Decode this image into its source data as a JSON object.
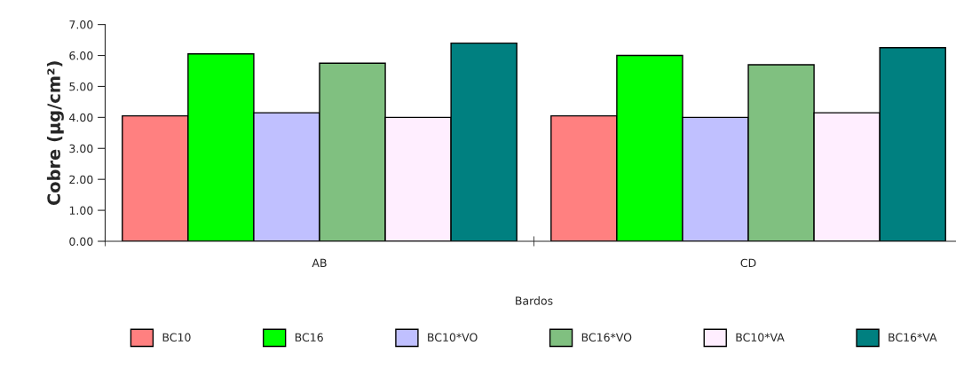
{
  "chart_data": {
    "type": "bar",
    "xlabel": "Bardos",
    "ylabel": "Cobre (µg/cm²)",
    "categories": [
      "AB",
      "CD"
    ],
    "series": [
      {
        "name": "BC10",
        "color": "#ff8080",
        "values": [
          4.05,
          4.05
        ]
      },
      {
        "name": "BC16",
        "color": "#00ff00",
        "values": [
          6.05,
          6.0
        ]
      },
      {
        "name": "BC10*VO",
        "color": "#c0c0ff",
        "values": [
          4.15,
          4.0
        ]
      },
      {
        "name": "BC16*VO",
        "color": "#80c080",
        "values": [
          5.75,
          5.7
        ]
      },
      {
        "name": "BC10*VA",
        "color": "#ffeeff",
        "values": [
          4.0,
          4.15
        ]
      },
      {
        "name": "BC16*VA",
        "color": "#008080",
        "values": [
          6.4,
          6.25
        ]
      }
    ],
    "ylim": [
      0,
      7
    ],
    "yticks": [
      {
        "value": 0,
        "label": "0.00"
      },
      {
        "value": 1,
        "label": "1.00"
      },
      {
        "value": 2,
        "label": "2.00"
      },
      {
        "value": 3,
        "label": "3.00"
      },
      {
        "value": 4,
        "label": "4.00"
      },
      {
        "value": 5,
        "label": "5.00"
      },
      {
        "value": 6,
        "label": "6.00"
      },
      {
        "value": 7,
        "label": "7.00"
      }
    ],
    "grid": false,
    "legend": "bottom"
  }
}
